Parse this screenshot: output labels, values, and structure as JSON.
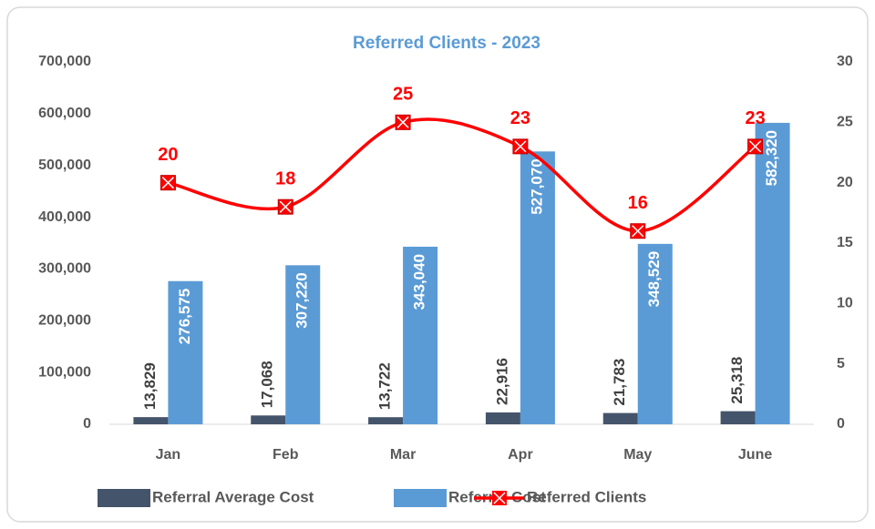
{
  "chart_data": {
    "type": "bar",
    "title": "Referred Clients - 2023",
    "categories": [
      "Jan",
      "Feb",
      "Mar",
      "Apr",
      "May",
      "June"
    ],
    "series": [
      {
        "name": "Referral Average Cost",
        "color": "#44546a",
        "values": [
          13829,
          17068,
          13722,
          22916,
          21783,
          25318
        ],
        "value_labels": [
          "13,829",
          "17,068",
          "13,722",
          "22,916",
          "21,783",
          "25,318"
        ]
      },
      {
        "name": "Referral Cost",
        "color": "#5b9bd5",
        "values": [
          276575,
          307220,
          343040,
          527070,
          348529,
          582320
        ],
        "value_labels": [
          "276,575",
          "307,220",
          "343,040",
          "527,070",
          "348,529",
          "582,320"
        ]
      },
      {
        "name": "Referred Clients",
        "color": "#ff0000",
        "type": "line",
        "axis": "y2",
        "values": [
          20,
          18,
          25,
          23,
          16,
          23
        ]
      }
    ],
    "ylim": [
      0,
      700000
    ],
    "yticks": [
      0,
      {
        "value": 100000,
        "label": "100,000"
      },
      {
        "value": 200000,
        "label": "200,000"
      },
      {
        "value": 300000,
        "label": "300,000"
      },
      {
        "value": 400000,
        "label": "400,000"
      },
      {
        "value": 500000,
        "label": "500,000"
      },
      {
        "value": 600000,
        "label": "600,000"
      },
      {
        "value": 700000,
        "label": "700,000"
      }
    ],
    "y2lim": [
      0,
      30
    ],
    "y2ticks": [
      0,
      5,
      10,
      15,
      20,
      25,
      30
    ],
    "grid": false,
    "legend": "bottom"
  }
}
